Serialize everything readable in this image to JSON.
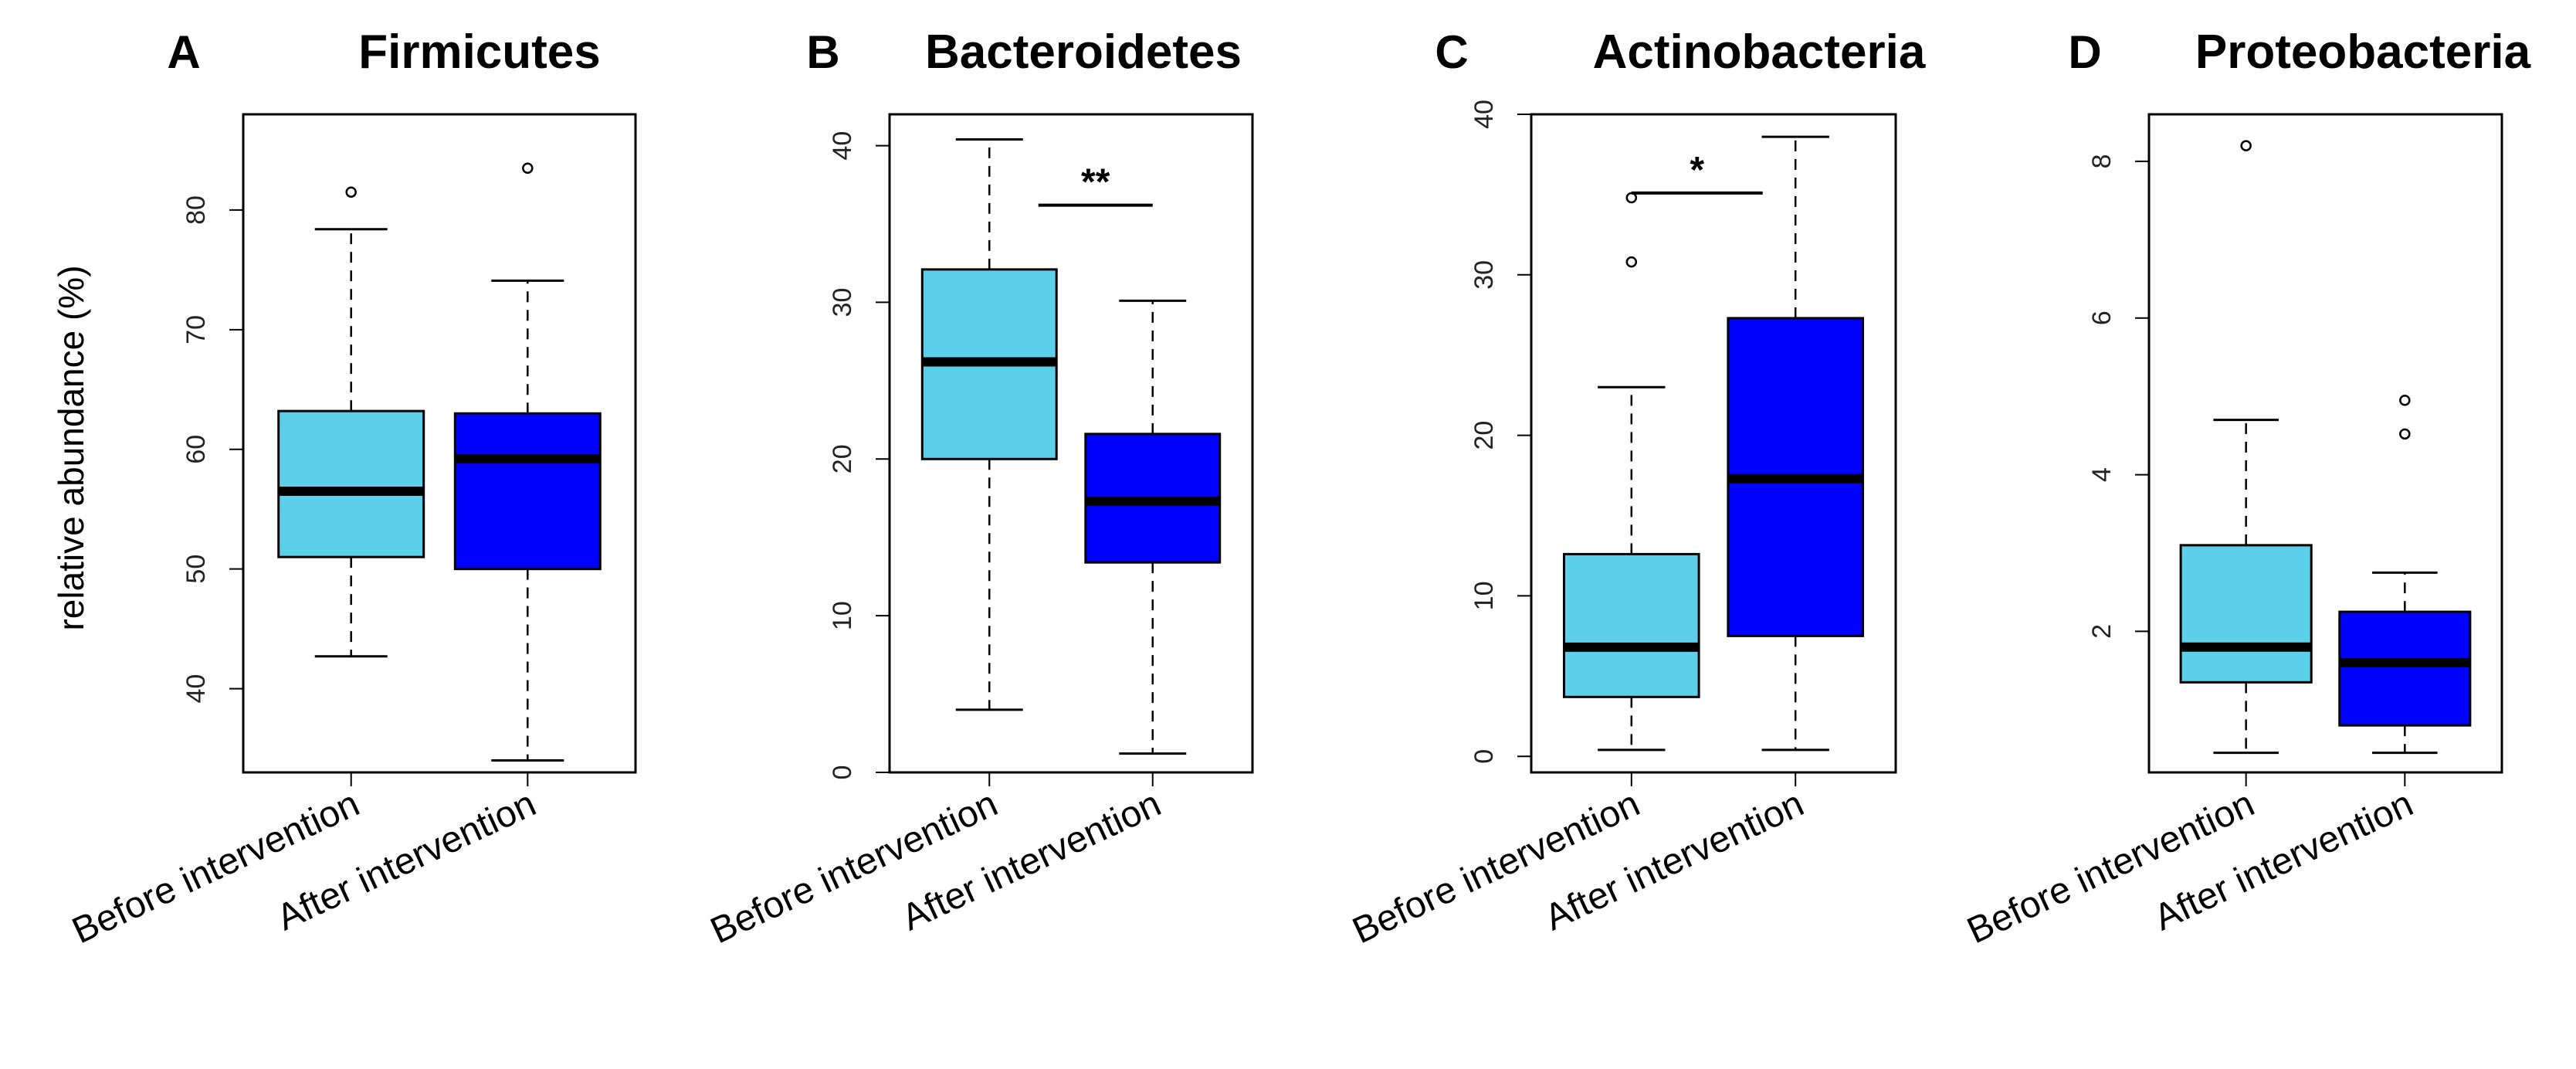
{
  "figure": {
    "ylabel": "relative abundance (%)",
    "categories": [
      "Before intervention",
      "After intervention"
    ],
    "colors": {
      "before": "#5ccfeb",
      "after": "#0000ff"
    }
  },
  "chart_data": [
    {
      "type": "boxplot",
      "letter": "A",
      "title": "Firmicutes",
      "ylim": [
        33,
        88
      ],
      "yticks": [
        40,
        50,
        60,
        70,
        80
      ],
      "categories": [
        "Before intervention",
        "After intervention"
      ],
      "boxes": [
        {
          "name": "Before intervention",
          "q1": 51,
          "median": 56.5,
          "q3": 63.2,
          "whisker_low": 42.7,
          "whisker_high": 78.4,
          "outliers": [
            81.5
          ]
        },
        {
          "name": "After intervention",
          "q1": 50,
          "median": 59.2,
          "q3": 63,
          "whisker_low": 34,
          "whisker_high": 74.1,
          "outliers": [
            83.5
          ]
        }
      ],
      "significance": null
    },
    {
      "type": "boxplot",
      "letter": "B",
      "title": "Bacteroidetes",
      "ylim": [
        0,
        42
      ],
      "yticks": [
        0,
        10,
        20,
        30,
        40
      ],
      "categories": [
        "Before intervention",
        "After intervention"
      ],
      "boxes": [
        {
          "name": "Before intervention",
          "q1": 20,
          "median": 26.2,
          "q3": 32.1,
          "whisker_low": 4,
          "whisker_high": 40.4,
          "outliers": []
        },
        {
          "name": "After intervention",
          "q1": 13.4,
          "median": 17.3,
          "q3": 21.6,
          "whisker_low": 1.2,
          "whisker_high": 30.1,
          "outliers": []
        }
      ],
      "significance": {
        "label": "**",
        "level": 36.2,
        "span": [
          0.3,
          1.0
        ]
      }
    },
    {
      "type": "boxplot",
      "letter": "C",
      "title": "Actinobacteria",
      "ylim": [
        -1,
        40
      ],
      "yticks": [
        0,
        10,
        20,
        30,
        40
      ],
      "categories": [
        "Before intervention",
        "After intervention"
      ],
      "boxes": [
        {
          "name": "Before intervention",
          "q1": 3.7,
          "median": 6.8,
          "q3": 12.6,
          "whisker_low": 0.4,
          "whisker_high": 23,
          "outliers": [
            30.8,
            34.8
          ]
        },
        {
          "name": "After intervention",
          "q1": 7.5,
          "median": 17.3,
          "q3": 27.3,
          "whisker_low": 0.4,
          "whisker_high": 38.6,
          "outliers": []
        }
      ],
      "significance": {
        "label": "*",
        "level": 35.1,
        "span": [
          0.0,
          0.8
        ]
      }
    },
    {
      "type": "boxplot",
      "letter": "D",
      "title": "Proteobacteria",
      "ylim": [
        0.2,
        8.6
      ],
      "yticks": [
        2,
        4,
        6,
        8
      ],
      "categories": [
        "Before intervention",
        "After intervention"
      ],
      "boxes": [
        {
          "name": "Before intervention",
          "q1": 1.35,
          "median": 1.8,
          "q3": 3.1,
          "whisker_low": 0.45,
          "whisker_high": 4.7,
          "outliers": [
            8.2
          ]
        },
        {
          "name": "After intervention",
          "q1": 0.8,
          "median": 1.6,
          "q3": 2.25,
          "whisker_low": 0.45,
          "whisker_high": 2.75,
          "outliers": [
            4.52,
            4.95
          ]
        }
      ],
      "significance": null
    }
  ]
}
